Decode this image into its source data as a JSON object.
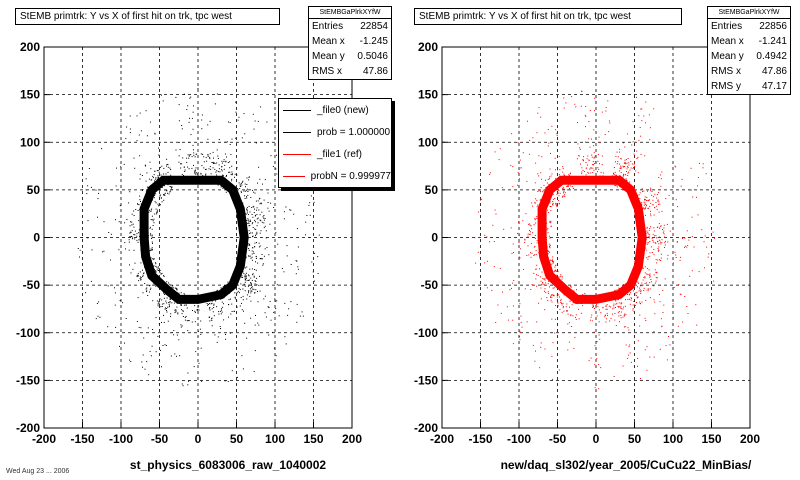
{
  "panels": [
    {
      "title": "StEMB primtrk: Y vs X of first hit on trk, tpc west",
      "stats_header": "StEMBGaPlrkXYfW",
      "stats": [
        {
          "label": "Entries",
          "value": "22854"
        },
        {
          "label": "Mean x",
          "value": "-1.245"
        },
        {
          "label": "Mean y",
          "value": "0.5046"
        },
        {
          "label": "RMS x",
          "value": "47.86"
        }
      ],
      "xlabel": "st_physics_6083006_raw_1040002"
    },
    {
      "title": "StEMB primtrk: Y vs X of first hit on trk, tpc west",
      "stats_header": "StEMBGaPlrkXYfW",
      "stats": [
        {
          "label": "Entries",
          "value": "22856"
        },
        {
          "label": "Mean x",
          "value": "-1.241"
        },
        {
          "label": "Mean y",
          "value": "0.4942"
        },
        {
          "label": "RMS x",
          "value": "47.86"
        },
        {
          "label": "RMS y",
          "value": "47.17"
        }
      ],
      "xlabel": "new/daq_sl302/year_2005/CuCu22_MinBias/"
    }
  ],
  "legend": [
    {
      "label": "_file0 (new)",
      "color": "#000000"
    },
    {
      "label": "prob = 1.000000",
      "color": "#000000"
    },
    {
      "label": "_file1 (ref)",
      "color": "#ff0000"
    },
    {
      "label": "probN = 0.999977",
      "color": "#ff0000"
    }
  ],
  "footer": "Wed Aug 23 ... 2006",
  "chart_data": [
    {
      "type": "scatter",
      "series": [
        {
          "name": "_file0 (new)",
          "color": "#000000"
        }
      ],
      "xlim": [
        -200,
        200
      ],
      "ylim": [
        -200,
        200
      ],
      "xticks": [
        -200,
        -150,
        -100,
        -50,
        0,
        50,
        100,
        150,
        200
      ],
      "yticks": [
        -200,
        -150,
        -100,
        -50,
        0,
        50,
        100,
        150,
        200
      ],
      "grid": true,
      "ring_outline": [
        [
          -70,
          30
        ],
        [
          -60,
          50
        ],
        [
          -45,
          60
        ],
        [
          -10,
          60
        ],
        [
          30,
          60
        ],
        [
          45,
          50
        ],
        [
          55,
          30
        ],
        [
          60,
          0
        ],
        [
          55,
          -30
        ],
        [
          45,
          -50
        ],
        [
          30,
          -60
        ],
        [
          0,
          -65
        ],
        [
          -25,
          -65
        ],
        [
          -40,
          -55
        ],
        [
          -60,
          -40
        ],
        [
          -68,
          -20
        ],
        [
          -70,
          0
        ]
      ]
    },
    {
      "type": "scatter",
      "series": [
        {
          "name": "_file1 (ref)",
          "color": "#ff0000"
        }
      ],
      "xlim": [
        -200,
        200
      ],
      "ylim": [
        -200,
        200
      ],
      "xticks": [
        -200,
        -150,
        -100,
        -50,
        0,
        50,
        100,
        150,
        200
      ],
      "yticks": [
        -200,
        -150,
        -100,
        -50,
        0,
        50,
        100,
        150,
        200
      ],
      "grid": true,
      "ring_outline": [
        [
          -70,
          30
        ],
        [
          -60,
          50
        ],
        [
          -45,
          60
        ],
        [
          -10,
          60
        ],
        [
          30,
          60
        ],
        [
          45,
          50
        ],
        [
          55,
          30
        ],
        [
          60,
          0
        ],
        [
          55,
          -30
        ],
        [
          45,
          -50
        ],
        [
          30,
          -60
        ],
        [
          0,
          -65
        ],
        [
          -25,
          -65
        ],
        [
          -40,
          -55
        ],
        [
          -60,
          -40
        ],
        [
          -68,
          -20
        ],
        [
          -70,
          0
        ]
      ]
    }
  ]
}
